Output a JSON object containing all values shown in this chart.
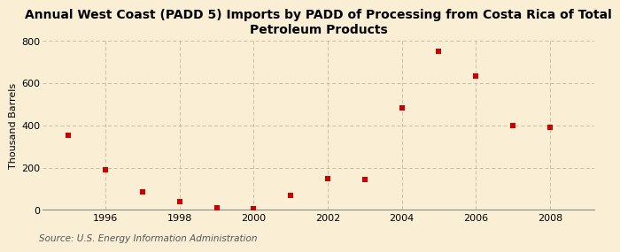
{
  "title": "Annual West Coast (PADD 5) Imports by PADD of Processing from Costa Rica of Total\nPetroleum Products",
  "ylabel": "Thousand Barrels",
  "source": "Source: U.S. Energy Information Administration",
  "years": [
    1995,
    1996,
    1997,
    1998,
    1999,
    2000,
    2001,
    2002,
    2003,
    2004,
    2005,
    2006,
    2007,
    2008
  ],
  "values": [
    355,
    190,
    85,
    38,
    8,
    5,
    68,
    148,
    143,
    485,
    750,
    632,
    400,
    390
  ],
  "marker_color": "#cc0000",
  "marker": "s",
  "marker_size": 4,
  "xlim": [
    1994.3,
    2009.2
  ],
  "ylim": [
    0,
    800
  ],
  "yticks": [
    0,
    200,
    400,
    600,
    800
  ],
  "xticks": [
    1996,
    1998,
    2000,
    2002,
    2004,
    2006,
    2008
  ],
  "background_color": "#faefd4",
  "plot_background_color": "#faefd4",
  "grid_color": "#c8b89a",
  "title_fontsize": 10,
  "axis_fontsize": 8,
  "source_fontsize": 7.5
}
